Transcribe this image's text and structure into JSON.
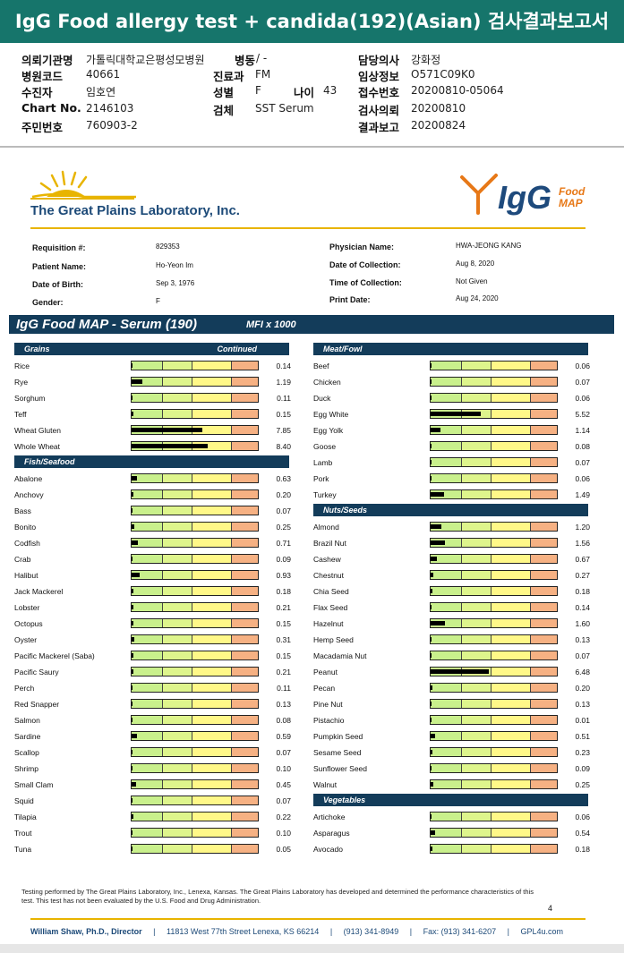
{
  "title": "IgG Food allergy test + candida(192)(Asian) 검사결과보고서",
  "korean_header": {
    "left": [
      {
        "label": "의뢰기관명",
        "value": "가톨릭대학교은평성모병원"
      },
      {
        "label": "병원코드",
        "value": "40661"
      },
      {
        "label": "수진자",
        "value": "임호연"
      },
      {
        "label": "Chart No.",
        "value": "2146103"
      },
      {
        "label": "주민번호",
        "value": "760903-2"
      }
    ],
    "middle": [
      {
        "label": "병동",
        "value": "/ -"
      },
      {
        "label": "진료과",
        "value": "FM"
      },
      {
        "label": "성별",
        "value": "F"
      },
      {
        "label": "검체",
        "value": "SST Serum"
      }
    ],
    "age": {
      "label": "나이",
      "value": "43"
    },
    "right": [
      {
        "label": "담당의사",
        "value": "강화정"
      },
      {
        "label": "임상정보",
        "value": "O571C09K0"
      },
      {
        "label": "접수번호",
        "value": "20200810-05064"
      },
      {
        "label": "검사의뢰",
        "value": "20200810"
      },
      {
        "label": "결과보고",
        "value": "20200824"
      }
    ]
  },
  "lab": {
    "name": "The Great Plains Laboratory, Inc.",
    "brand_main": "IgG",
    "brand_sub1": "Food",
    "brand_sub2": "MAP"
  },
  "patient": {
    "left": [
      {
        "label": "Requisition #:",
        "value": "829353"
      },
      {
        "label": "Patient Name:",
        "value": "Ho-Yeon Im"
      },
      {
        "label": "Date of Birth:",
        "value": "Sep 3, 1976"
      },
      {
        "label": "Gender:",
        "value": "F"
      }
    ],
    "right": [
      {
        "label": "Physician Name:",
        "value": "HWA-JEONG KANG"
      },
      {
        "label": "Date of Collection:",
        "value": "Aug 8, 2020"
      },
      {
        "label": "Time of Collection:",
        "value": "Not Given"
      },
      {
        "label": "Print Date:",
        "value": "Aug 24, 2020"
      }
    ]
  },
  "map": {
    "title": "IgG Food MAP - Serum (190)",
    "unit": "MFI x 1000"
  },
  "scale_max": 14,
  "sections_left": [
    {
      "name": "Grains",
      "note": "Continued",
      "items": [
        {
          "food": "Rice",
          "value": "0.14"
        },
        {
          "food": "Rye",
          "value": "1.19"
        },
        {
          "food": "Sorghum",
          "value": "0.11"
        },
        {
          "food": "Teff",
          "value": "0.15"
        },
        {
          "food": "Wheat Gluten",
          "value": "7.85"
        },
        {
          "food": "Whole Wheat",
          "value": "8.40"
        }
      ]
    },
    {
      "name": "Fish/Seafood",
      "note": "",
      "items": [
        {
          "food": "Abalone",
          "value": "0.63"
        },
        {
          "food": "Anchovy",
          "value": "0.20"
        },
        {
          "food": "Bass",
          "value": "0.07"
        },
        {
          "food": "Bonito",
          "value": "0.25"
        },
        {
          "food": "Codfish",
          "value": "0.71"
        },
        {
          "food": "Crab",
          "value": "0.09"
        },
        {
          "food": "Halibut",
          "value": "0.93"
        },
        {
          "food": "Jack Mackerel",
          "value": "0.18"
        },
        {
          "food": "Lobster",
          "value": "0.21"
        },
        {
          "food": "Octopus",
          "value": "0.15"
        },
        {
          "food": "Oyster",
          "value": "0.31"
        },
        {
          "food": "Pacific Mackerel (Saba)",
          "value": "0.15"
        },
        {
          "food": "Pacific Saury",
          "value": "0.21"
        },
        {
          "food": "Perch",
          "value": "0.11"
        },
        {
          "food": "Red Snapper",
          "value": "0.13"
        },
        {
          "food": "Salmon",
          "value": "0.08"
        },
        {
          "food": "Sardine",
          "value": "0.59"
        },
        {
          "food": "Scallop",
          "value": "0.07"
        },
        {
          "food": "Shrimp",
          "value": "0.10"
        },
        {
          "food": "Small Clam",
          "value": "0.45"
        },
        {
          "food": "Squid",
          "value": "0.07"
        },
        {
          "food": "Tilapia",
          "value": "0.22"
        },
        {
          "food": "Trout",
          "value": "0.10"
        },
        {
          "food": "Tuna",
          "value": "0.05"
        }
      ]
    }
  ],
  "sections_right": [
    {
      "name": "Meat/Fowl",
      "note": "",
      "items": [
        {
          "food": "Beef",
          "value": "0.06"
        },
        {
          "food": "Chicken",
          "value": "0.07"
        },
        {
          "food": "Duck",
          "value": "0.06"
        },
        {
          "food": "Egg White",
          "value": "5.52"
        },
        {
          "food": "Egg Yolk",
          "value": "1.14"
        },
        {
          "food": "Goose",
          "value": "0.08"
        },
        {
          "food": "Lamb",
          "value": "0.07"
        },
        {
          "food": "Pork",
          "value": "0.06"
        },
        {
          "food": "Turkey",
          "value": "1.49"
        }
      ]
    },
    {
      "name": "Nuts/Seeds",
      "note": "",
      "items": [
        {
          "food": "Almond",
          "value": "1.20"
        },
        {
          "food": "Brazil Nut",
          "value": "1.56"
        },
        {
          "food": "Cashew",
          "value": "0.67"
        },
        {
          "food": "Chestnut",
          "value": "0.27"
        },
        {
          "food": "Chia Seed",
          "value": "0.18"
        },
        {
          "food": "Flax Seed",
          "value": "0.14"
        },
        {
          "food": "Hazelnut",
          "value": "1.60"
        },
        {
          "food": "Hemp Seed",
          "value": "0.13"
        },
        {
          "food": "Macadamia Nut",
          "value": "0.07"
        },
        {
          "food": "Peanut",
          "value": "6.48"
        },
        {
          "food": "Pecan",
          "value": "0.20"
        },
        {
          "food": "Pine Nut",
          "value": "0.13"
        },
        {
          "food": "Pistachio",
          "value": "0.01"
        },
        {
          "food": "Pumpkin Seed",
          "value": "0.51"
        },
        {
          "food": "Sesame Seed",
          "value": "0.23"
        },
        {
          "food": "Sunflower Seed",
          "value": "0.09"
        },
        {
          "food": "Walnut",
          "value": "0.25"
        }
      ]
    },
    {
      "name": "Vegetables",
      "note": "",
      "items": [
        {
          "food": "Artichoke",
          "value": "0.06"
        },
        {
          "food": "Asparagus",
          "value": "0.54"
        },
        {
          "food": "Avocado",
          "value": "0.18"
        }
      ]
    }
  ],
  "disclaimer": "Testing performed by The Great Plains Laboratory, Inc., Lenexa, Kansas.  The Great Plains Laboratory has developed and determined the performance characteristics of this test.  This test has not been evaluated by the U.S.  Food and Drug Administration.",
  "page_number": "4",
  "footer": {
    "director": "William Shaw, Ph.D., Director",
    "address": "11813 West 77th Street Lenexa, KS 66214",
    "phone": "(913) 341-8949",
    "fax": "Fax: (913) 341-6207",
    "web": "GPL4u.com"
  }
}
